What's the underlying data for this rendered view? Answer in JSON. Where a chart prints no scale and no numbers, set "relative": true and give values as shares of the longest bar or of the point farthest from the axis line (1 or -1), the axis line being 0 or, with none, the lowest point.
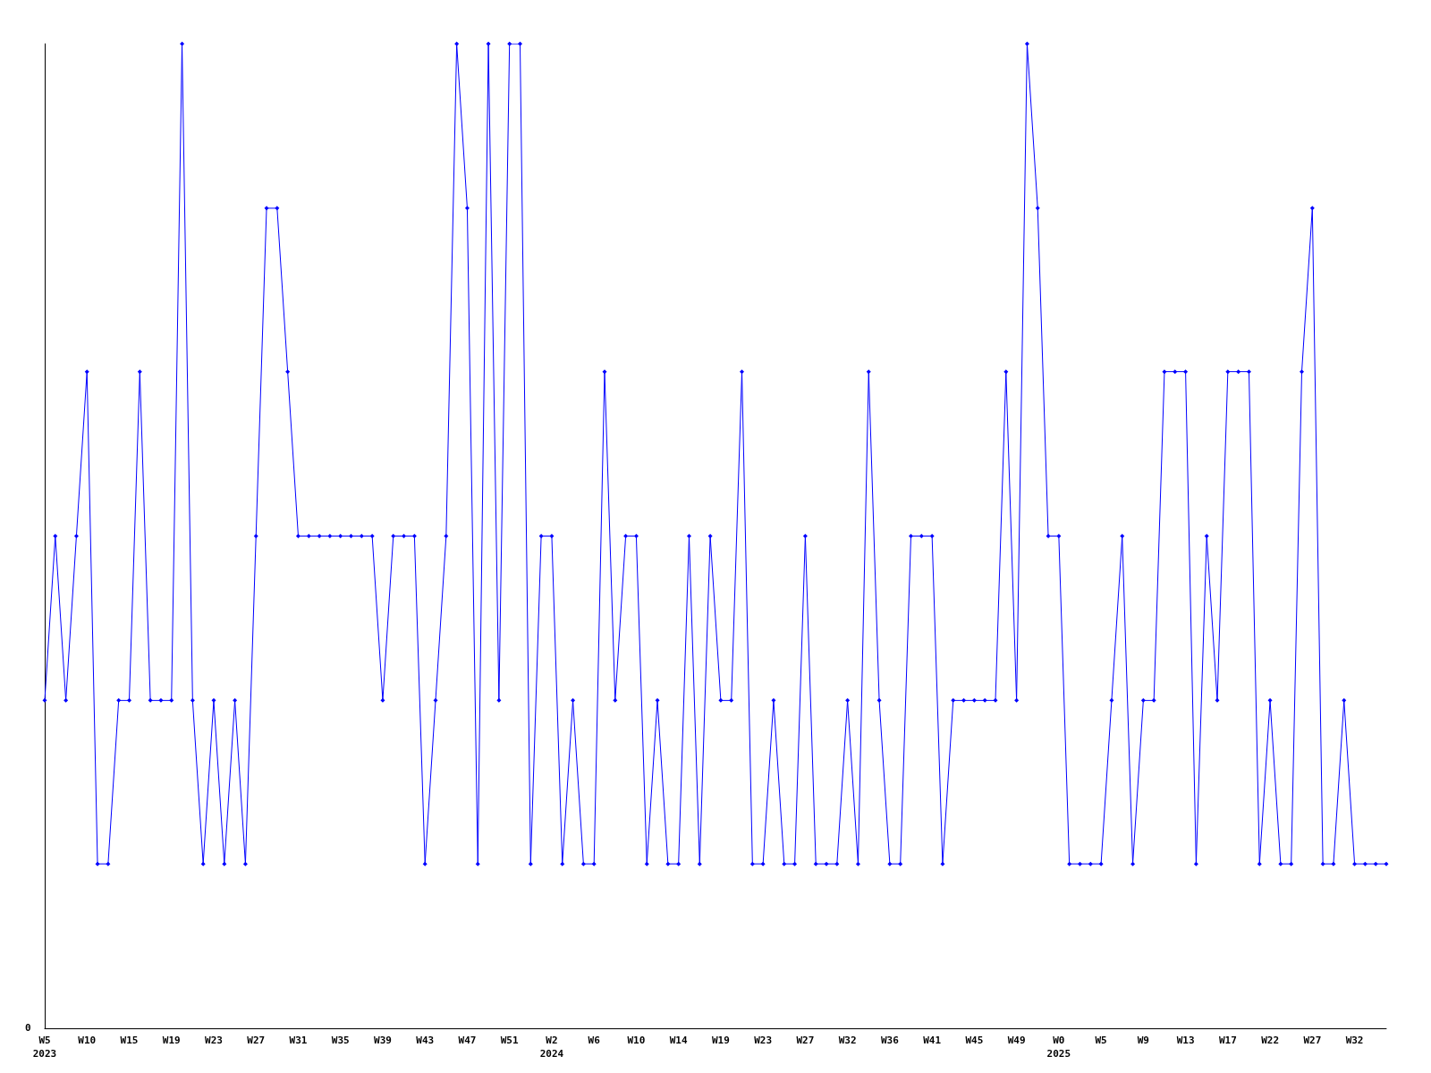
{
  "chart_data": {
    "type": "line",
    "relative": true,
    "color": "#0000ff",
    "marker": "diamond",
    "annotations": [
      "0"
    ],
    "categories": [
      "W5\n2023",
      null,
      null,
      null,
      "W10",
      null,
      null,
      null,
      "W15",
      null,
      null,
      null,
      "W19",
      null,
      null,
      null,
      "W23",
      null,
      null,
      null,
      "W27",
      null,
      null,
      null,
      "W31",
      null,
      null,
      null,
      "W35",
      null,
      null,
      null,
      "W39",
      null,
      null,
      null,
      "W43",
      null,
      null,
      null,
      "W47",
      null,
      null,
      null,
      "W51",
      null,
      null,
      null,
      "W2\n2024",
      null,
      null,
      null,
      "W6",
      null,
      null,
      null,
      "W10",
      null,
      null,
      null,
      "W14",
      null,
      null,
      null,
      "W19",
      null,
      null,
      null,
      "W23",
      null,
      null,
      null,
      "W27",
      null,
      null,
      null,
      "W32",
      null,
      null,
      null,
      "W36",
      null,
      null,
      null,
      "W41",
      null,
      null,
      null,
      "W45",
      null,
      null,
      null,
      "W49",
      null,
      null,
      null,
      "W0\n2025",
      null,
      null,
      null,
      "W5",
      null,
      null,
      null,
      "W9",
      null,
      null,
      null,
      "W13",
      null,
      null,
      null,
      "W17",
      null,
      null,
      null,
      "W22",
      null,
      null,
      null,
      "W27",
      null,
      null,
      null,
      "W32",
      null,
      null,
      null
    ],
    "values": [
      0.333,
      0.5,
      0.333,
      0.5,
      0.667,
      0.167,
      0.167,
      0.333,
      0.333,
      0.667,
      0.333,
      0.333,
      0.333,
      1,
      0.333,
      0.167,
      0.333,
      0.167,
      0.333,
      0.167,
      0.5,
      0.833,
      0.833,
      0.667,
      0.5,
      0.5,
      0.5,
      0.5,
      0.5,
      0.5,
      0.5,
      0.5,
      0.333,
      0.5,
      0.5,
      0.5,
      0.167,
      0.333,
      0.5,
      1,
      0.833,
      0.167,
      1,
      0.333,
      1,
      1,
      0.167,
      0.5,
      0.5,
      0.167,
      0.333,
      0.167,
      0.167,
      0.667,
      0.333,
      0.5,
      0.5,
      0.167,
      0.333,
      0.167,
      0.167,
      0.5,
      0.167,
      0.5,
      0.333,
      0.333,
      0.667,
      0.167,
      0.167,
      0.333,
      0.167,
      0.167,
      0.5,
      0.167,
      0.167,
      0.167,
      0.333,
      0.167,
      0.667,
      0.333,
      0.167,
      0.167,
      0.5,
      0.5,
      0.5,
      0.167,
      0.333,
      0.333,
      0.333,
      0.333,
      0.333,
      0.667,
      0.333,
      1,
      0.833,
      0.5,
      0.5,
      0.167,
      0.167,
      0.167,
      0.167,
      0.333,
      0.5,
      0.167,
      0.333,
      0.333,
      0.667,
      0.667,
      0.667,
      0.167,
      0.5,
      0.333,
      0.667,
      0.667,
      0.667,
      0.167,
      0.333,
      0.167,
      0.167,
      0.667,
      0.833,
      0.167,
      0.167,
      0.333,
      0.167,
      0.167,
      0.167,
      0.167
    ]
  }
}
